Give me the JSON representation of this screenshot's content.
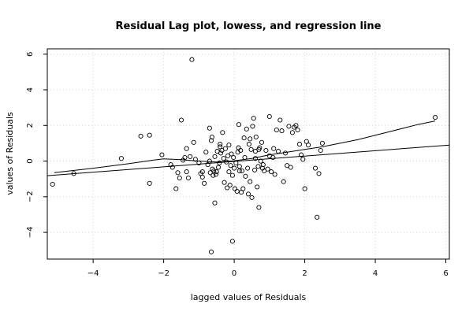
{
  "chart_data": {
    "type": "scatter",
    "title": "Residual Lag plot, lowess, and regression line",
    "xlabel": "lagged values of Residuals",
    "ylabel": "values of Residuals",
    "xlim": [
      -5.3,
      6.1
    ],
    "ylim": [
      -5.5,
      6.3
    ],
    "x_ticks": [
      -4,
      -2,
      0,
      2,
      4,
      6
    ],
    "y_ticks": [
      -4,
      -2,
      0,
      2,
      4,
      6
    ],
    "x_tick_labels": [
      "−4",
      "−2",
      "0",
      "2",
      "4",
      "6"
    ],
    "y_tick_labels": [
      "−4",
      "−2",
      "0",
      "2",
      "4",
      "6"
    ],
    "grid": true,
    "colors": {
      "points": "#000000",
      "lines": "#000000",
      "grid": "#d3d3d3"
    },
    "points": [
      [
        -5.15,
        -1.3
      ],
      [
        -4.55,
        -0.7
      ],
      [
        -3.2,
        0.15
      ],
      [
        -2.65,
        1.4
      ],
      [
        -2.4,
        1.45
      ],
      [
        -2.4,
        -1.25
      ],
      [
        -2.05,
        0.35
      ],
      [
        -1.8,
        -0.2
      ],
      [
        -1.75,
        -0.35
      ],
      [
        -1.65,
        -1.55
      ],
      [
        -1.6,
        -0.65
      ],
      [
        -1.55,
        -0.95
      ],
      [
        -1.5,
        2.3
      ],
      [
        -1.45,
        0.05
      ],
      [
        -1.35,
        0.7
      ],
      [
        -1.35,
        -0.6
      ],
      [
        -1.3,
        -0.95
      ],
      [
        -1.25,
        0.25
      ],
      [
        -1.2,
        5.7
      ],
      [
        -1.15,
        1.05
      ],
      [
        -1.1,
        0.1
      ],
      [
        -1.0,
        -0.1
      ],
      [
        -0.95,
        -0.7
      ],
      [
        -0.9,
        -0.9
      ],
      [
        -0.85,
        -1.25
      ],
      [
        -0.8,
        0.5
      ],
      [
        -0.75,
        -0.2
      ],
      [
        -0.7,
        1.85
      ],
      [
        -0.68,
        -0.65
      ],
      [
        -0.65,
        1.15
      ],
      [
        -0.63,
        1.35
      ],
      [
        -0.62,
        -0.45
      ],
      [
        -0.6,
        -0.8
      ],
      [
        -0.58,
        -0.55
      ],
      [
        -0.55,
        0.25
      ],
      [
        -0.52,
        -0.75
      ],
      [
        -0.5,
        -0.6
      ],
      [
        -0.48,
        0.55
      ],
      [
        -0.45,
        -0.35
      ],
      [
        -0.42,
        -0.1
      ],
      [
        -0.65,
        -5.1
      ],
      [
        -0.55,
        -2.35
      ],
      [
        -0.4,
        0.8
      ],
      [
        -0.38,
        0.45
      ],
      [
        -0.35,
        0.6
      ],
      [
        -0.33,
        1.6
      ],
      [
        -0.3,
        0.15
      ],
      [
        -0.28,
        -1.2
      ],
      [
        -0.25,
        0.7
      ],
      [
        -0.22,
        -0.05
      ],
      [
        -0.2,
        -1.5
      ],
      [
        -0.18,
        0.3
      ],
      [
        -0.15,
        -0.6
      ],
      [
        -0.12,
        -1.35
      ],
      [
        -0.1,
        -0.25
      ],
      [
        -0.08,
        0.4
      ],
      [
        -0.05,
        -0.8
      ],
      [
        -0.02,
        0.2
      ],
      [
        0.0,
        -0.4
      ],
      [
        0.02,
        -1.55
      ],
      [
        0.05,
        -0.1
      ],
      [
        0.08,
        -1.7
      ],
      [
        0.1,
        0.5
      ],
      [
        0.12,
        0.75
      ],
      [
        0.13,
        2.05
      ],
      [
        0.15,
        -0.3
      ],
      [
        0.18,
        0.6
      ],
      [
        0.2,
        -1.75
      ],
      [
        0.22,
        -0.55
      ],
      [
        0.25,
        -1.55
      ],
      [
        0.28,
        1.3
      ],
      [
        0.3,
        0.2
      ],
      [
        0.32,
        -0.85
      ],
      [
        0.35,
        1.8
      ],
      [
        0.38,
        -0.4
      ],
      [
        0.4,
        -1.85
      ],
      [
        0.42,
        0.95
      ],
      [
        0.45,
        -1.15
      ],
      [
        0.48,
        0.65
      ],
      [
        0.5,
        -2.05
      ],
      [
        0.52,
        1.95
      ],
      [
        0.55,
        2.4
      ],
      [
        0.58,
        -0.5
      ],
      [
        0.6,
        0.15
      ],
      [
        0.62,
        1.35
      ],
      [
        0.65,
        -1.45
      ],
      [
        0.68,
        -0.3
      ],
      [
        0.7,
        -2.6
      ],
      [
        0.72,
        0.75
      ],
      [
        0.75,
        0.0
      ],
      [
        0.78,
        1.05
      ],
      [
        0.8,
        -0.4
      ],
      [
        0.82,
        -0.2
      ],
      [
        0.85,
        -0.55
      ],
      [
        0.9,
        0.6
      ],
      [
        0.95,
        -0.45
      ],
      [
        1.0,
        2.5
      ],
      [
        1.05,
        -0.6
      ],
      [
        1.1,
        0.2
      ],
      [
        1.12,
        0.7
      ],
      [
        1.15,
        -0.75
      ],
      [
        1.2,
        1.75
      ],
      [
        1.25,
        0.55
      ],
      [
        1.3,
        2.3
      ],
      [
        1.35,
        1.7
      ],
      [
        1.4,
        -1.15
      ],
      [
        1.45,
        0.45
      ],
      [
        1.5,
        -0.25
      ],
      [
        1.55,
        1.95
      ],
      [
        1.6,
        -0.35
      ],
      [
        1.65,
        1.6
      ],
      [
        1.7,
        1.9
      ],
      [
        1.75,
        2.0
      ],
      [
        1.8,
        1.75
      ],
      [
        1.85,
        0.95
      ],
      [
        1.9,
        0.35
      ],
      [
        1.95,
        0.1
      ],
      [
        2.0,
        -1.55
      ],
      [
        2.05,
        1.1
      ],
      [
        2.1,
        0.9
      ],
      [
        2.3,
        -0.4
      ],
      [
        2.35,
        -3.15
      ],
      [
        2.4,
        -0.7
      ],
      [
        2.45,
        0.6
      ],
      [
        2.5,
        1.0
      ],
      [
        5.7,
        2.45
      ],
      [
        -0.9,
        -0.6
      ],
      [
        -0.7,
        0.0
      ],
      [
        0.6,
        0.55
      ],
      [
        -1.4,
        0.2
      ],
      [
        1.0,
        0.3
      ],
      [
        0.7,
        0.65
      ],
      [
        -0.4,
        0.95
      ],
      [
        0.15,
        -0.55
      ],
      [
        -0.15,
        0.9
      ],
      [
        0.45,
        1.25
      ],
      [
        -0.05,
        -4.5
      ]
    ],
    "lowess": [
      [
        -5.1,
        -0.65
      ],
      [
        -4.0,
        -0.4
      ],
      [
        -3.0,
        -0.15
      ],
      [
        -2.3,
        0.05
      ],
      [
        -2.0,
        0.12
      ],
      [
        -1.5,
        0.08
      ],
      [
        -1.0,
        0.0
      ],
      [
        -0.5,
        -0.05
      ],
      [
        0.0,
        0.02
      ],
      [
        0.5,
        0.15
      ],
      [
        1.0,
        0.35
      ],
      [
        1.5,
        0.5
      ],
      [
        2.0,
        0.65
      ],
      [
        2.5,
        0.8
      ],
      [
        3.5,
        1.2
      ],
      [
        4.5,
        1.7
      ],
      [
        5.2,
        2.05
      ],
      [
        5.7,
        2.25
      ]
    ],
    "regression": [
      [
        -5.3,
        -0.82
      ],
      [
        6.1,
        0.9
      ]
    ]
  }
}
